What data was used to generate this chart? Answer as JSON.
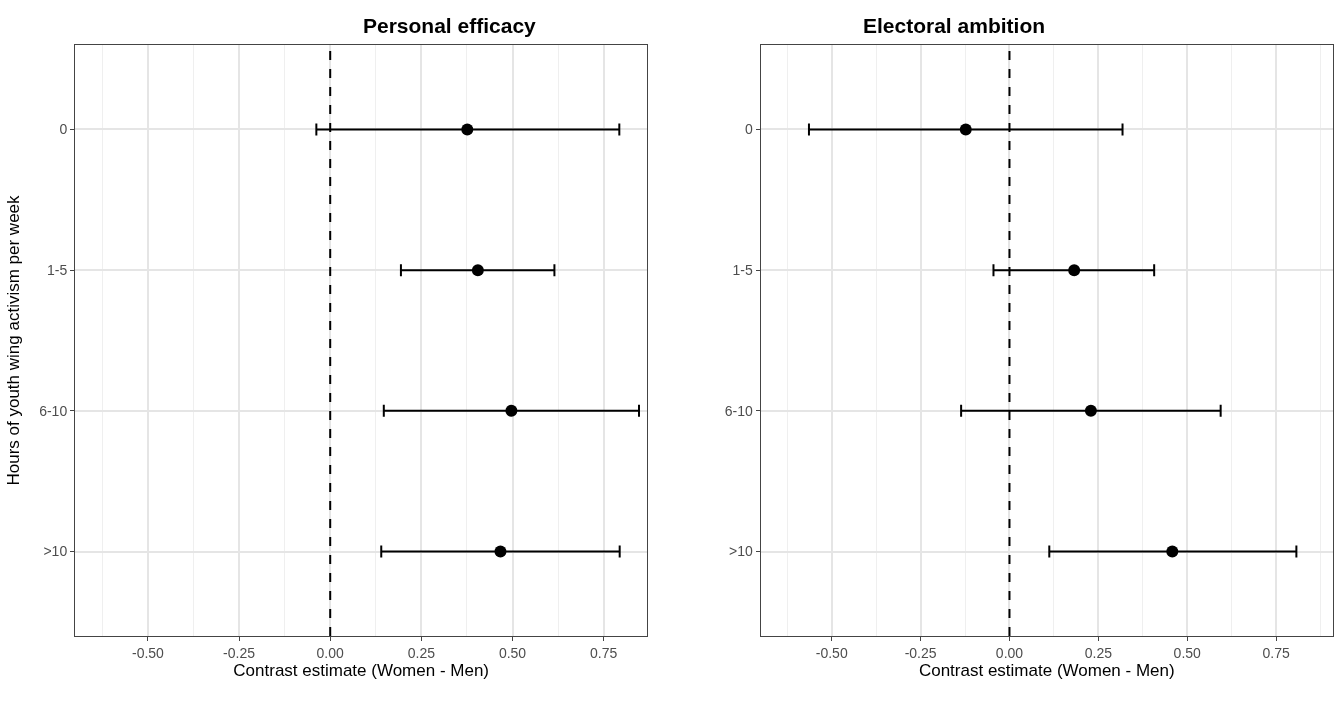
{
  "chart_data": [
    {
      "type": "scatter",
      "orientation": "horizontal",
      "title": "Personal efficacy",
      "xlabel": "Contrast estimate (Women - Men)",
      "ylabel": "Hours of youth wing activism per week",
      "categories": [
        "0",
        "1-5",
        "6-10",
        ">10"
      ],
      "series": [
        {
          "color": "#000000",
          "values": [
            0.376,
            0.405,
            0.497,
            0.467
          ],
          "errors": [
            [
              -0.038,
              0.793
            ],
            [
              0.194,
              0.615
            ],
            [
              0.147,
              0.847
            ],
            [
              0.14,
              0.794
            ]
          ]
        }
      ],
      "xlim": [
        -0.7,
        0.87
      ],
      "xticks": [
        {
          "value": -0.5,
          "label": "-0.50"
        },
        {
          "value": -0.25,
          "label": "-0.25"
        },
        {
          "value": 0,
          "label": "0.00"
        },
        {
          "value": 0.25,
          "label": "0.25"
        },
        {
          "value": 0.5,
          "label": "0.50"
        },
        {
          "value": 0.75,
          "label": "0.75"
        }
      ],
      "ref_lines": [
        {
          "axis": "x",
          "value": 0,
          "color": "#000000",
          "line_style": "dashed"
        }
      ],
      "grid": true,
      "marker": "circle"
    },
    {
      "type": "scatter",
      "orientation": "horizontal",
      "title": "Electoral ambition",
      "xlabel": "Contrast estimate (Women - Men)",
      "categories": [
        "0",
        "1-5",
        "6-10",
        ">10"
      ],
      "series": [
        {
          "color": "#000000",
          "values": [
            -0.123,
            0.182,
            0.229,
            0.458
          ],
          "errors": [
            [
              -0.564,
              0.318
            ],
            [
              -0.045,
              0.407
            ],
            [
              -0.136,
              0.594
            ],
            [
              0.112,
              0.807
            ]
          ]
        }
      ],
      "xlim": [
        -0.7,
        0.91
      ],
      "xticks": [
        {
          "value": -0.5,
          "label": "-0.50"
        },
        {
          "value": -0.25,
          "label": "-0.25"
        },
        {
          "value": 0,
          "label": "0.00"
        },
        {
          "value": 0.25,
          "label": "0.25"
        },
        {
          "value": 0.5,
          "label": "0.50"
        },
        {
          "value": 0.75,
          "label": "0.75"
        }
      ],
      "ref_lines": [
        {
          "axis": "x",
          "value": 0,
          "color": "#000000",
          "line_style": "dashed"
        }
      ],
      "grid": true,
      "marker": "circle"
    }
  ]
}
